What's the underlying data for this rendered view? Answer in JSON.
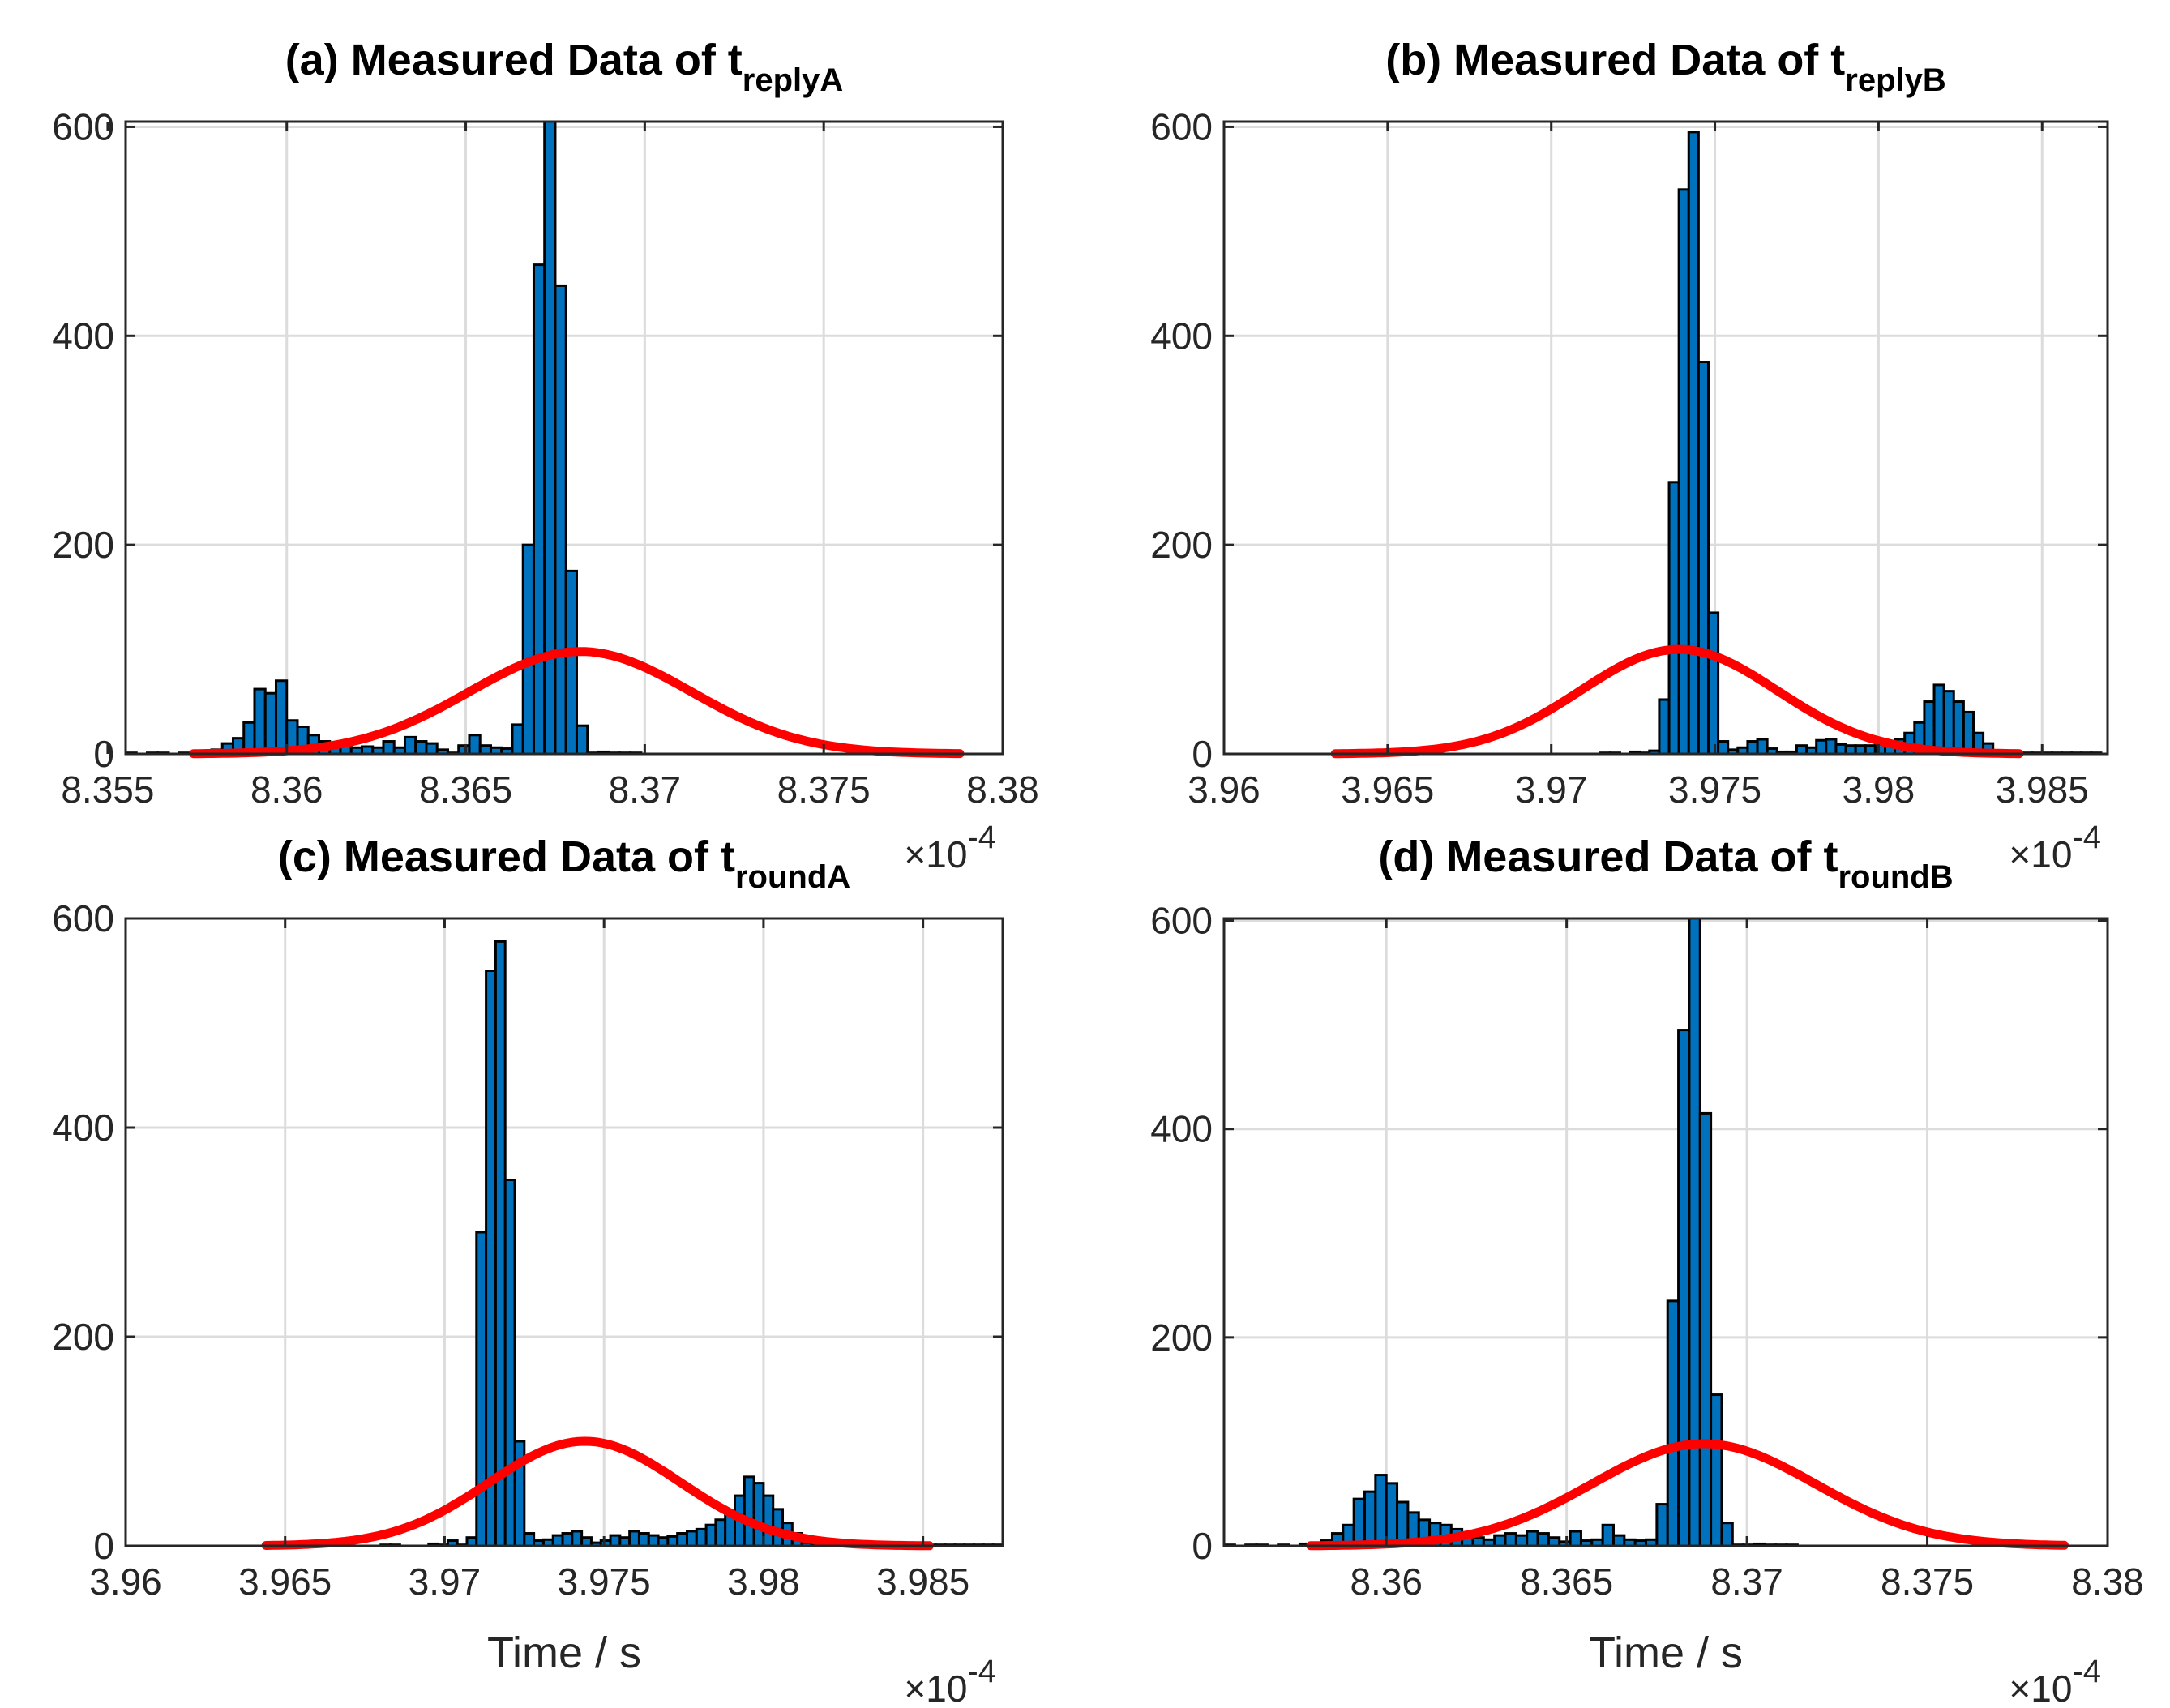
{
  "colors": {
    "bars": "#0072BD",
    "fit": "#FF0000",
    "background": "#FFFFFF"
  },
  "chart_data": [
    {
      "id": "a",
      "type": "bar",
      "title": "(a) Measured Data of t",
      "title_sub": "replyA",
      "xlabel": "",
      "ylabel": "",
      "exponent_base": "×10",
      "exponent_power": "-4",
      "xlim": [
        8.3555,
        8.38
      ],
      "ylim": [
        0,
        605
      ],
      "xticks": [
        8.355,
        8.36,
        8.365,
        8.37,
        8.375,
        8.38
      ],
      "xtick_labels": [
        "8.355",
        "8.36",
        "8.365",
        "8.37",
        "8.375",
        "8.38"
      ],
      "yticks": [
        0,
        200,
        400,
        600
      ],
      "ytick_labels": [
        "0",
        "200",
        "400",
        "600"
      ],
      "bin_start": 8.3555,
      "bin_width": 0.0003,
      "counts": [
        1,
        0,
        1,
        1,
        0,
        1,
        0,
        2,
        4,
        10,
        15,
        30,
        62,
        58,
        70,
        32,
        26,
        18,
        12,
        8,
        8,
        6,
        7,
        6,
        12,
        6,
        16,
        12,
        10,
        4,
        1,
        8,
        18,
        8,
        6,
        5,
        28,
        200,
        468,
        610,
        448,
        175,
        27,
        1,
        2,
        1,
        1,
        1,
        0,
        0,
        0,
        0,
        0,
        0,
        0,
        0,
        0,
        0,
        0,
        0,
        0,
        0,
        0,
        0,
        0,
        0,
        0,
        0,
        0,
        0,
        0,
        0,
        0,
        0,
        0,
        0,
        0,
        0,
        0,
        0,
        0
      ],
      "fit": {
        "mean": 8.3682,
        "sigma": 0.0031,
        "peak": 98,
        "x_from": 8.3574,
        "x_to": 8.3788
      }
    },
    {
      "id": "b",
      "type": "bar",
      "title": "(b) Measured Data of t",
      "title_sub": "replyB",
      "xlabel": "",
      "ylabel": "",
      "exponent_base": "×10",
      "exponent_power": "-4",
      "xlim": [
        3.96,
        3.987
      ],
      "ylim": [
        0,
        605
      ],
      "xticks": [
        3.96,
        3.965,
        3.97,
        3.975,
        3.98,
        3.985
      ],
      "xtick_labels": [
        "3.96",
        "3.965",
        "3.97",
        "3.975",
        "3.98",
        "3.985"
      ],
      "yticks": [
        0,
        200,
        400,
        600
      ],
      "ytick_labels": [
        "0",
        "200",
        "400",
        "600"
      ],
      "bin_start": 3.9634,
      "bin_width": 0.0003,
      "counts": [
        0,
        0,
        0,
        0,
        0,
        0,
        0,
        0,
        0,
        0,
        0,
        0,
        0,
        0,
        0,
        0,
        0,
        0,
        0,
        0,
        0,
        0,
        0,
        0,
        0,
        0,
        0,
        1,
        1,
        0,
        2,
        1,
        3,
        52,
        260,
        540,
        595,
        375,
        135,
        12,
        4,
        6,
        12,
        14,
        5,
        2,
        2,
        8,
        6,
        13,
        14,
        9,
        8,
        8,
        8,
        12,
        12,
        14,
        20,
        30,
        50,
        66,
        60,
        50,
        40,
        20,
        10,
        3,
        1,
        1,
        1,
        1,
        1,
        1,
        1,
        1,
        1,
        1,
        1,
        1,
        1
      ],
      "fit": {
        "mean": 3.9739,
        "sigma": 0.003,
        "peak": 100,
        "x_from": 3.9634,
        "x_to": 3.9843
      }
    },
    {
      "id": "c",
      "type": "bar",
      "title": "(c) Measured Data of t",
      "title_sub": "roundA",
      "xlabel": "Time / s",
      "ylabel": "",
      "exponent_base": "×10",
      "exponent_power": "-4",
      "xlim": [
        3.96,
        3.9875
      ],
      "ylim": [
        0,
        600
      ],
      "xticks": [
        3.96,
        3.965,
        3.97,
        3.975,
        3.98,
        3.985
      ],
      "xtick_labels": [
        "3.96",
        "3.965",
        "3.97",
        "3.975",
        "3.98",
        "3.985"
      ],
      "yticks": [
        0,
        200,
        400,
        600
      ],
      "ytick_labels": [
        "0",
        "200",
        "400",
        "600"
      ],
      "bin_start": 3.9644,
      "bin_width": 0.0003,
      "counts": [
        3,
        2,
        1,
        1,
        1,
        0,
        0,
        1,
        0,
        0,
        0,
        0,
        1,
        1,
        0,
        0,
        0,
        2,
        1,
        5,
        1,
        8,
        300,
        550,
        578,
        350,
        100,
        12,
        5,
        6,
        10,
        12,
        14,
        8,
        3,
        5,
        10,
        8,
        14,
        12,
        10,
        8,
        9,
        12,
        14,
        16,
        20,
        25,
        30,
        48,
        66,
        60,
        48,
        35,
        22,
        12,
        3,
        1,
        1,
        1,
        1,
        2,
        1,
        1,
        1,
        1,
        1,
        1,
        1,
        1,
        1,
        1,
        1,
        1,
        1,
        1,
        1,
        1,
        1,
        1,
        1
      ],
      "fit": {
        "mean": 3.9744,
        "sigma": 0.003,
        "peak": 100,
        "x_from": 3.9644,
        "x_to": 3.9852
      }
    },
    {
      "id": "d",
      "type": "bar",
      "title": "(d) Measured Data of t",
      "title_sub": "roundB",
      "xlabel": "Time / s",
      "ylabel": "",
      "exponent_base": "×10",
      "exponent_power": "-4",
      "xlim": [
        8.3555,
        8.38
      ],
      "ylim": [
        0,
        602
      ],
      "xticks": [
        8.36,
        8.365,
        8.37,
        8.375,
        8.38
      ],
      "xtick_labels": [
        "8.36",
        "8.365",
        "8.37",
        "8.375",
        "8.38"
      ],
      "yticks": [
        0,
        200,
        400,
        600
      ],
      "ytick_labels": [
        "0",
        "200",
        "400",
        "600"
      ],
      "bin_start": 8.3555,
      "bin_width": 0.0003,
      "counts": [
        1,
        0,
        1,
        1,
        0,
        1,
        0,
        2,
        2,
        5,
        12,
        20,
        45,
        52,
        68,
        60,
        42,
        32,
        25,
        22,
        20,
        16,
        8,
        8,
        6,
        10,
        12,
        10,
        14,
        12,
        8,
        4,
        14,
        5,
        6,
        20,
        10,
        6,
        5,
        6,
        40,
        235,
        495,
        625,
        415,
        145,
        22,
        1,
        1,
        2,
        1,
        1,
        1,
        0,
        0,
        0,
        0,
        0,
        0,
        0,
        0,
        0,
        0,
        0,
        0,
        0,
        0,
        0,
        0,
        0,
        0,
        0,
        0,
        0,
        0,
        0,
        0,
        0,
        0,
        0,
        0
      ],
      "fit": {
        "mean": 8.3688,
        "sigma": 0.0031,
        "peak": 98,
        "x_from": 8.3579,
        "x_to": 8.3788
      }
    }
  ]
}
